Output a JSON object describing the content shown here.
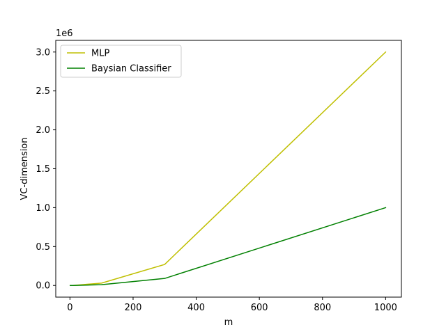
{
  "chart_data": {
    "type": "line",
    "xlabel": "m",
    "ylabel": "VC-dimension",
    "offset_text": "1e6",
    "xlim": [
      -45,
      1050
    ],
    "ylim": [
      -150000,
      3150000
    ],
    "y_scale_factor": 1000000,
    "xticks": [
      0,
      200,
      400,
      600,
      800,
      1000
    ],
    "xtick_labels": [
      "0",
      "200",
      "400",
      "600",
      "800",
      "1000"
    ],
    "yticks": [
      0,
      500000,
      1000000,
      1500000,
      2000000,
      2500000,
      3000000
    ],
    "ytick_labels": [
      "0.0",
      "0.5",
      "1.0",
      "1.5",
      "2.0",
      "2.5",
      "3.0"
    ],
    "grid": false,
    "legend_position": "upper-left",
    "series": [
      {
        "name": "MLP",
        "color": "#bfbf00",
        "x": [
          1,
          10,
          100,
          300,
          1000
        ],
        "y": [
          3,
          300,
          30000,
          270000,
          3000000
        ]
      },
      {
        "name": "Baysian Classifier",
        "color": "#008000",
        "x": [
          1,
          10,
          100,
          300,
          1000
        ],
        "y": [
          1,
          100,
          10000,
          90000,
          1000000
        ]
      }
    ]
  }
}
